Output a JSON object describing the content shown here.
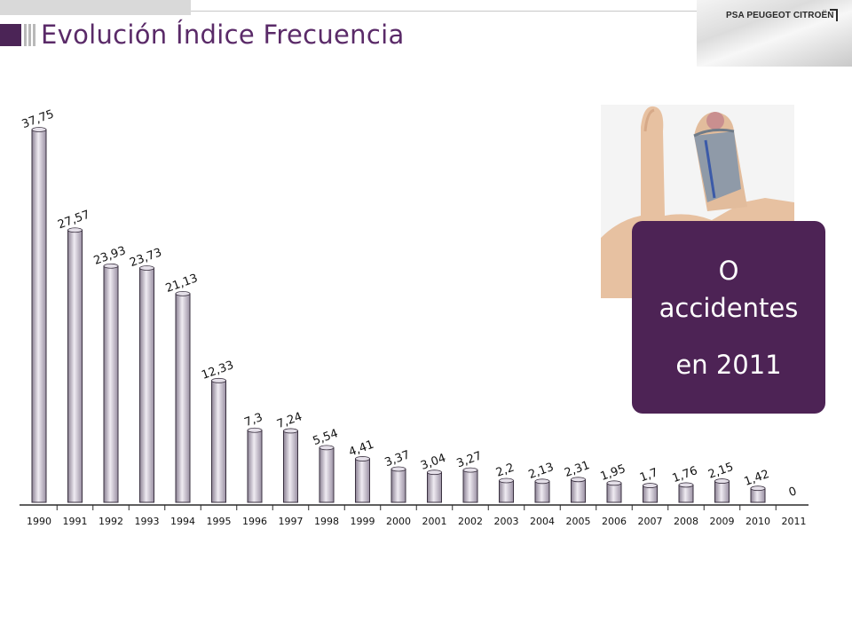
{
  "header": {
    "title": "Evolución Índice Frecuencia",
    "logo_text": "PSA PEUGEOT CITROËN"
  },
  "callout": {
    "line1": "O",
    "line2": "accidentes",
    "line3": "en 2011"
  },
  "colors": {
    "brand_purple": "#4d2355",
    "title_purple": "#5a2a68",
    "bar_fill": "#c4bccb"
  },
  "photo": {
    "icon": "bandaged-finger-photo"
  },
  "chart_data": {
    "type": "bar",
    "categories": [
      "1990",
      "1991",
      "1992",
      "1993",
      "1994",
      "1995",
      "1996",
      "1997",
      "1998",
      "1999",
      "2000",
      "2001",
      "2002",
      "2003",
      "2004",
      "2005",
      "2006",
      "2007",
      "2008",
      "2009",
      "2010",
      "2011"
    ],
    "values": [
      37.75,
      27.57,
      23.93,
      23.73,
      21.13,
      12.33,
      7.3,
      7.24,
      5.54,
      4.41,
      3.37,
      3.04,
      3.27,
      2.2,
      2.13,
      2.31,
      1.95,
      1.7,
      1.76,
      2.15,
      1.42,
      0
    ],
    "labels": [
      "37,75",
      "27,57",
      "23,93",
      "23,73",
      "21,13",
      "12,33",
      "7,3",
      "7,24",
      "5,54",
      "4,41",
      "3,37",
      "3,04",
      "3,27",
      "2,2",
      "2,13",
      "2,31",
      "1,95",
      "1,7",
      "1,76",
      "2,15",
      "1,42",
      "0"
    ],
    "title": "",
    "xlabel": "",
    "ylabel": "",
    "ylim": [
      0,
      37.75
    ],
    "grid": false,
    "legend": "none"
  }
}
